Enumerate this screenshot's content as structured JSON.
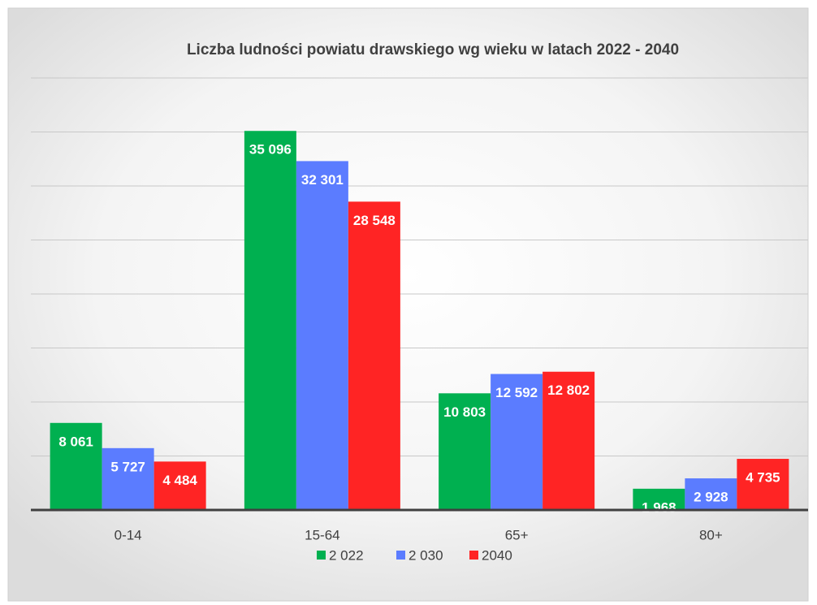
{
  "chart_data": {
    "type": "bar",
    "title": "Liczba ludności powiatu drawskiego wg wieku  w latach 2022 - 2040",
    "categories": [
      "0-14",
      "15-64",
      "65+",
      "80+"
    ],
    "series": [
      {
        "name": "2 022",
        "color": "#00b050",
        "values": [
          8061,
          35096,
          10803,
          1968
        ],
        "value_labels": [
          "8 061",
          "35 096",
          "10 803",
          "1 968"
        ]
      },
      {
        "name": "2 030",
        "color": "#5b7cff",
        "values": [
          5727,
          32301,
          12592,
          2928
        ],
        "value_labels": [
          "5 727",
          "32 301",
          "12 592",
          "2 928"
        ]
      },
      {
        "name": "2040",
        "color": "#ff2424",
        "values": [
          4484,
          28548,
          12802,
          4735
        ],
        "value_labels": [
          "4 484",
          "28 548",
          "12 802",
          "4 735"
        ]
      }
    ],
    "ylim": [
      0,
      40000
    ],
    "yticks": [
      0,
      5000,
      10000,
      15000,
      20000,
      25000,
      30000,
      35000,
      40000
    ],
    "grid": true,
    "legend": "bottom"
  }
}
